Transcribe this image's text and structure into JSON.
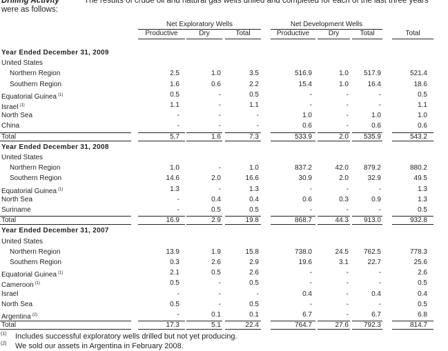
{
  "intro": {
    "heading": "Drilling Activity",
    "lines": [
      "The results of crude oil and natural gas wells drilled and completed for each of the last three years",
      "were as follows:"
    ]
  },
  "header": {
    "groups": [
      "Net Exploratory Wells",
      "Net Development Wells"
    ],
    "columns": [
      "Productive",
      "Dry",
      "Total",
      "Productive",
      "Dry",
      "Total",
      "Total"
    ]
  },
  "sections": [
    {
      "title": "Year Ended December 31, 2009",
      "group": {
        "label": "United States",
        "rows": [
          {
            "label": "Northern Region",
            "cells": [
              "2.5",
              "1.0",
              "3.5",
              "516.9",
              "1.0",
              "517.9",
              "521.4"
            ]
          },
          {
            "label": "Southern Region",
            "cells": [
              "1.6",
              "0.6",
              "2.2",
              "15.4",
              "1.0",
              "16.4",
              "18.6"
            ]
          }
        ]
      },
      "rows": [
        {
          "label": "Equatorial Guinea",
          "note": "(1)",
          "cells": [
            "0.5",
            "-",
            "0.5",
            "-",
            "-",
            "-",
            "0.5"
          ]
        },
        {
          "label": "Israel",
          "note": "(1)",
          "cells": [
            "1.1",
            "-",
            "1.1",
            "-",
            "-",
            "-",
            "1.1"
          ]
        },
        {
          "label": "North Sea",
          "cells": [
            "-",
            "-",
            "-",
            "1.0",
            "-",
            "1.0",
            "1.0"
          ]
        },
        {
          "label": "China",
          "cells": [
            "-",
            "-",
            "-",
            "0.6",
            "-",
            "0.6",
            "0.6"
          ]
        }
      ],
      "total": {
        "label": "Total",
        "cells": [
          "5.7",
          "1.6",
          "7.3",
          "533.9",
          "2.0",
          "535.9",
          "543.2"
        ]
      }
    },
    {
      "title": "Year Ended December 31, 2008",
      "group": {
        "label": "United States",
        "rows": [
          {
            "label": "Northern Region",
            "cells": [
              "1.0",
              "-",
              "1.0",
              "837.2",
              "42.0",
              "879.2",
              "880.2"
            ]
          },
          {
            "label": "Southern Region",
            "cells": [
              "14.6",
              "2.0",
              "16.6",
              "30.9",
              "2.0",
              "32.9",
              "49.5"
            ]
          }
        ]
      },
      "rows": [
        {
          "label": "Equatorial Guinea",
          "note": "(1)",
          "cells": [
            "1.3",
            "-",
            "1.3",
            "-",
            "-",
            "-",
            "1.3"
          ]
        },
        {
          "label": "North Sea",
          "cells": [
            "-",
            "0.4",
            "0.4",
            "0.6",
            "0.3",
            "0.9",
            "1.3"
          ]
        },
        {
          "label": "Suriname",
          "cells": [
            "-",
            "0.5",
            "0.5",
            "-",
            "-",
            "-",
            "0.5"
          ]
        }
      ],
      "total": {
        "label": "Total",
        "cells": [
          "16.9",
          "2.9",
          "19.8",
          "868.7",
          "44.3",
          "913.0",
          "932.8"
        ]
      }
    },
    {
      "title": "Year Ended December 31, 2007",
      "group": {
        "label": "United States",
        "rows": [
          {
            "label": "Northern Region",
            "cells": [
              "13.9",
              "1.9",
              "15.8",
              "738.0",
              "24.5",
              "762.5",
              "778.3"
            ]
          },
          {
            "label": "Southern Region",
            "cells": [
              "0.3",
              "2.6",
              "2.9",
              "19.6",
              "3.1",
              "22.7",
              "25.6"
            ]
          }
        ]
      },
      "rows": [
        {
          "label": "Equatorial Guinea",
          "note": "(1)",
          "cells": [
            "2.1",
            "0.5",
            "2.6",
            "-",
            "-",
            "-",
            "2.6"
          ]
        },
        {
          "label": "Cameroon",
          "note": "(1)",
          "cells": [
            "0.5",
            "-",
            "0.5",
            "-",
            "-",
            "-",
            "0.5"
          ]
        },
        {
          "label": "Israel",
          "cells": [
            "-",
            "-",
            "-",
            "0.4",
            "-",
            "0.4",
            "0.4"
          ]
        },
        {
          "label": "North Sea",
          "cells": [
            "0.5",
            "-",
            "0.5",
            "-",
            "-",
            "-",
            "0.5"
          ]
        },
        {
          "label": "Argentina",
          "note": "(2)",
          "cells": [
            "-",
            "0.1",
            "0.1",
            "6.7",
            "-",
            "6.7",
            "6.8"
          ]
        }
      ],
      "total": {
        "label": "Total",
        "cells": [
          "17.3",
          "5.1",
          "22.4",
          "764.7",
          "27.6",
          "792.3",
          "814.7"
        ]
      }
    }
  ],
  "footnotes": [
    {
      "mark": "(1)",
      "text": "Includes successful exploratory wells drilled but not yet producing."
    },
    {
      "mark": "(2)",
      "text": "We sold our assets in Argentina in February 2008."
    }
  ]
}
